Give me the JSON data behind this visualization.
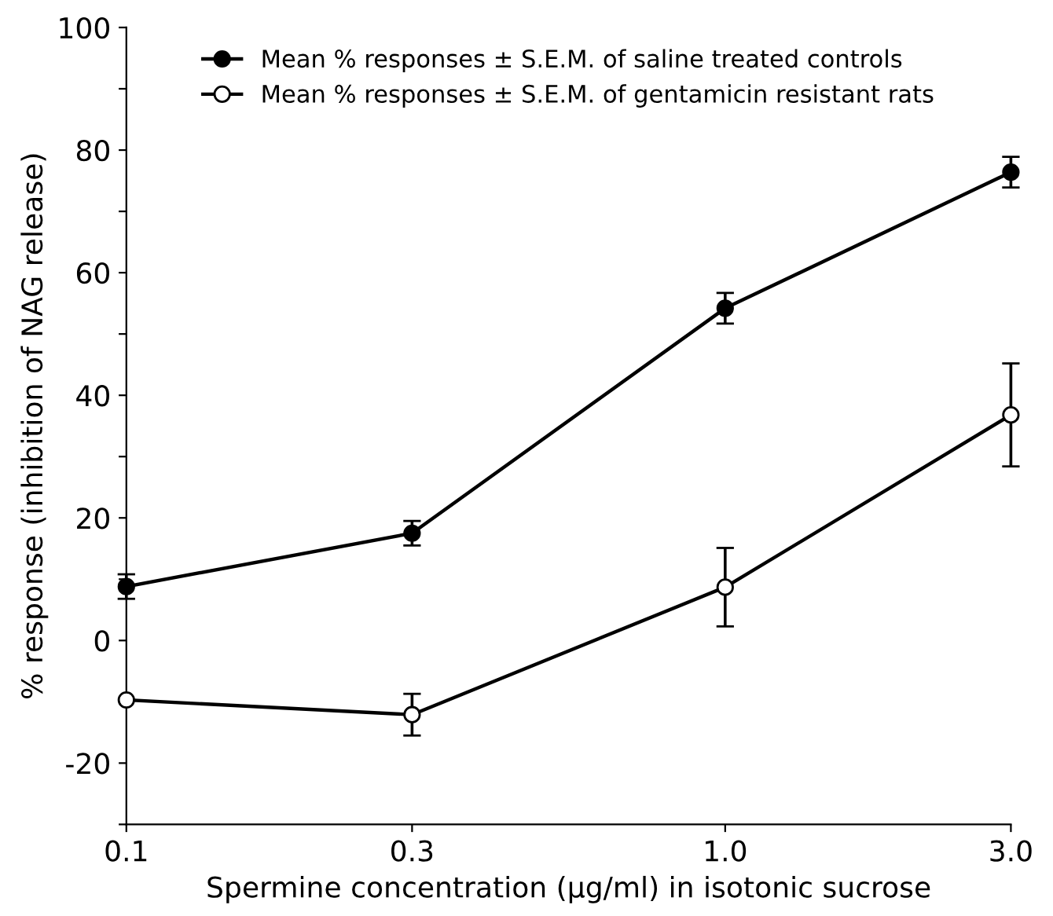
{
  "chart_data": {
    "type": "line",
    "xlabel": "Spermine concentration (μg/ml) in isotonic sucrose",
    "ylabel": "% response (inhibition of NAG release)",
    "x": [
      0.1,
      0.3,
      1.0,
      3.0
    ],
    "log": "x",
    "xlim": [
      0.1,
      3.0
    ],
    "xticks": [
      {
        "value": 0.1,
        "label": "0.1"
      },
      {
        "value": 0.3,
        "label": "0.3"
      },
      {
        "value": 1.0,
        "label": "1.0"
      },
      {
        "value": 3.0,
        "label": "3.0"
      }
    ],
    "ylim": [
      -30,
      100
    ],
    "yticks": [
      {
        "value": -30,
        "label": null
      },
      -20,
      {
        "value": -10,
        "label": null
      },
      0,
      {
        "value": 10,
        "label": null
      },
      20,
      {
        "value": 30,
        "label": null
      },
      40,
      {
        "value": 50,
        "label": null
      },
      60,
      {
        "value": 70,
        "label": null
      },
      80,
      {
        "value": 90,
        "label": null
      },
      100
    ],
    "marker": "circle",
    "line_style": "solid",
    "grid": false,
    "legend": "top",
    "series": [
      {
        "name": "Mean % responses ± S.E.M. of saline treated controls",
        "color": "#000000",
        "values": [
          8.8,
          17.5,
          54.2,
          76.4
        ],
        "errors": [
          2,
          2,
          2.5,
          2.5
        ]
      },
      {
        "name": "Mean % responses ± S.E.M. of gentamicin resistant rats",
        "color": "#ffffff",
        "values": [
          -9.7,
          -12.1,
          8.7,
          36.8
        ],
        "errors": [
          null,
          3.4,
          6.4,
          8.4
        ]
      }
    ]
  }
}
